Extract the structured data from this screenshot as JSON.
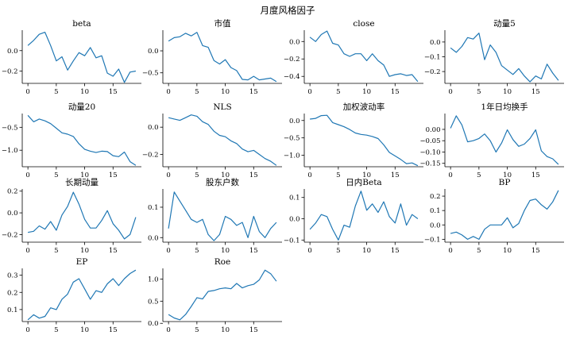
{
  "figure": {
    "title": "月度风格因子",
    "line_color": "#1f77b4"
  },
  "chart_data": [
    {
      "type": "line",
      "title": "beta",
      "x": [
        0,
        1,
        2,
        3,
        4,
        5,
        6,
        7,
        8,
        9,
        10,
        11,
        12,
        13,
        14,
        15,
        16,
        17,
        18,
        19
      ],
      "y": [
        0.05,
        0.1,
        0.16,
        0.18,
        0.05,
        -0.1,
        -0.06,
        -0.19,
        -0.1,
        -0.02,
        -0.05,
        0.03,
        -0.07,
        -0.05,
        -0.22,
        -0.25,
        -0.18,
        -0.31,
        -0.21,
        -0.2
      ],
      "xticks": [
        0,
        5,
        10,
        15
      ],
      "yticks": [
        0.0,
        -0.2
      ],
      "ytick_labels": [
        "0.0",
        "−0.2"
      ],
      "ylim": [
        -0.32,
        0.2
      ],
      "xlim": [
        -1,
        20
      ]
    },
    {
      "type": "line",
      "title": "市值",
      "x": [
        0,
        1,
        2,
        3,
        4,
        5,
        6,
        7,
        8,
        9,
        10,
        11,
        12,
        13,
        14,
        15,
        16,
        17,
        18,
        19
      ],
      "y": [
        0.22,
        0.3,
        0.32,
        0.4,
        0.34,
        0.42,
        0.12,
        0.08,
        -0.22,
        -0.3,
        -0.2,
        -0.38,
        -0.45,
        -0.65,
        -0.66,
        -0.58,
        -0.66,
        -0.64,
        -0.62,
        -0.7
      ],
      "xticks": [
        0,
        5,
        10,
        15
      ],
      "yticks": [
        0.0,
        -0.5
      ],
      "ytick_labels": [
        "0.0",
        "−0.5"
      ],
      "ylim": [
        -0.74,
        0.47
      ],
      "xlim": [
        -1,
        20
      ]
    },
    {
      "type": "line",
      "title": "close",
      "x": [
        0,
        1,
        2,
        3,
        4,
        5,
        6,
        7,
        8,
        9,
        10,
        11,
        12,
        13,
        14,
        15,
        16,
        17,
        18,
        19
      ],
      "y": [
        0.05,
        0.0,
        0.08,
        0.12,
        -0.02,
        -0.04,
        -0.14,
        -0.17,
        -0.14,
        -0.14,
        -0.22,
        -0.14,
        -0.22,
        -0.27,
        -0.4,
        -0.38,
        -0.37,
        -0.39,
        -0.38,
        -0.46
      ],
      "xticks": [
        0,
        5,
        10,
        15
      ],
      "yticks": [
        0.0,
        -0.2,
        -0.4
      ],
      "ytick_labels": [
        "0.0",
        "−0.2",
        "−0.4"
      ],
      "ylim": [
        -0.48,
        0.13
      ],
      "xlim": [
        -1,
        20
      ]
    },
    {
      "type": "line",
      "title": "动量5",
      "x": [
        0,
        1,
        2,
        3,
        4,
        5,
        6,
        7,
        8,
        9,
        10,
        11,
        12,
        13,
        14,
        15,
        16,
        17,
        18,
        19
      ],
      "y": [
        -0.04,
        -0.07,
        -0.03,
        0.03,
        0.02,
        0.06,
        -0.12,
        -0.02,
        -0.07,
        -0.16,
        -0.19,
        -0.22,
        -0.18,
        -0.23,
        -0.27,
        -0.23,
        -0.25,
        -0.15,
        -0.21,
        -0.26
      ],
      "xticks": [
        0,
        5,
        10,
        15
      ],
      "yticks": [
        0.0,
        -0.1,
        -0.2
      ],
      "ytick_labels": [
        "0.0",
        "−0.1",
        "−0.2"
      ],
      "ylim": [
        -0.28,
        0.08
      ],
      "xlim": [
        -1,
        20
      ]
    },
    {
      "type": "line",
      "title": "动量20",
      "x": [
        0,
        1,
        2,
        3,
        4,
        5,
        6,
        7,
        8,
        9,
        10,
        11,
        12,
        13,
        14,
        15,
        16,
        17,
        18,
        19
      ],
      "y": [
        -0.24,
        -0.38,
        -0.32,
        -0.36,
        -0.42,
        -0.52,
        -0.62,
        -0.65,
        -0.7,
        -0.86,
        -0.98,
        -1.02,
        -1.05,
        -1.02,
        -1.03,
        -1.12,
        -1.14,
        -1.04,
        -1.25,
        -1.33
      ],
      "xticks": [
        0,
        5,
        10,
        15
      ],
      "yticks": [
        -0.5,
        -1.0
      ],
      "ytick_labels": [
        "−0.5",
        "−1.0"
      ],
      "ylim": [
        -1.36,
        -0.2
      ],
      "xlim": [
        -1,
        20
      ]
    },
    {
      "type": "line",
      "title": "NLS",
      "x": [
        0,
        1,
        2,
        3,
        4,
        5,
        6,
        7,
        8,
        9,
        10,
        11,
        12,
        13,
        14,
        15,
        16,
        17,
        18,
        19
      ],
      "y": [
        0.07,
        0.06,
        0.05,
        0.07,
        0.09,
        0.08,
        0.04,
        0.02,
        -0.03,
        -0.06,
        -0.07,
        -0.1,
        -0.12,
        -0.16,
        -0.18,
        -0.17,
        -0.2,
        -0.23,
        -0.25,
        -0.28
      ],
      "xticks": [
        0,
        5,
        10,
        15
      ],
      "yticks": [
        0.0,
        -0.2
      ],
      "ytick_labels": [
        "0.0",
        "−0.2"
      ],
      "ylim": [
        -0.29,
        0.1
      ],
      "xlim": [
        -1,
        20
      ]
    },
    {
      "type": "line",
      "title": "加权波动率",
      "x": [
        0,
        1,
        2,
        3,
        4,
        5,
        6,
        7,
        8,
        9,
        10,
        11,
        12,
        13,
        14,
        15,
        16,
        17,
        18,
        19
      ],
      "y": [
        0.04,
        0.06,
        0.14,
        0.15,
        -0.06,
        -0.12,
        -0.18,
        -0.26,
        -0.36,
        -0.4,
        -0.42,
        -0.46,
        -0.52,
        -0.7,
        -0.92,
        -1.02,
        -1.12,
        -1.24,
        -1.22,
        -1.3
      ],
      "xticks": [
        0,
        5,
        10,
        15
      ],
      "yticks": [
        0.0,
        -0.5,
        -1.0
      ],
      "ytick_labels": [
        "0.0",
        "−0.5",
        "−1.0"
      ],
      "ylim": [
        -1.33,
        0.2
      ],
      "xlim": [
        -1,
        20
      ]
    },
    {
      "type": "line",
      "title": "1年日均换手",
      "x": [
        0,
        1,
        2,
        3,
        4,
        5,
        6,
        7,
        8,
        9,
        10,
        11,
        12,
        13,
        14,
        15,
        16,
        17,
        18,
        19
      ],
      "y": [
        0.005,
        0.06,
        0.02,
        -0.055,
        -0.05,
        -0.04,
        -0.02,
        -0.05,
        -0.1,
        -0.06,
        -0.002,
        -0.045,
        -0.075,
        -0.065,
        -0.04,
        -0.002,
        -0.095,
        -0.12,
        -0.13,
        -0.155
      ],
      "xticks": [
        0,
        5,
        10,
        15
      ],
      "yticks": [
        0.0,
        -0.05,
        -0.1,
        -0.15
      ],
      "ytick_labels": [
        "0.00",
        "−0.05",
        "−0.10",
        "−0.15"
      ],
      "ylim": [
        -0.165,
        0.07
      ],
      "xlim": [
        -1,
        20
      ]
    },
    {
      "type": "line",
      "title": "长期动量",
      "x": [
        0,
        1,
        2,
        3,
        4,
        5,
        6,
        7,
        8,
        9,
        10,
        11,
        12,
        13,
        14,
        15,
        16,
        17,
        18,
        19
      ],
      "y": [
        -0.18,
        -0.17,
        -0.12,
        -0.15,
        -0.08,
        -0.16,
        -0.02,
        0.06,
        0.19,
        0.08,
        -0.06,
        -0.14,
        -0.14,
        -0.07,
        0.02,
        -0.1,
        -0.16,
        -0.24,
        -0.2,
        -0.04
      ],
      "xticks": [
        0,
        5,
        10,
        15
      ],
      "yticks": [
        0.2,
        0.0,
        -0.2
      ],
      "ytick_labels": [
        "0.2",
        "0.0",
        "−0.2"
      ],
      "ylim": [
        -0.27,
        0.22
      ],
      "xlim": [
        -1,
        20
      ]
    },
    {
      "type": "line",
      "title": "股东户数",
      "x": [
        0,
        1,
        2,
        3,
        4,
        5,
        6,
        7,
        8,
        9,
        10,
        11,
        12,
        13,
        14,
        15,
        16,
        17,
        18,
        19
      ],
      "y": [
        0.03,
        0.15,
        0.12,
        0.09,
        0.06,
        0.05,
        0.06,
        0.01,
        -0.01,
        0.01,
        0.07,
        0.06,
        0.04,
        0.05,
        0.0,
        0.07,
        0.02,
        0.0,
        0.03,
        0.05
      ],
      "xticks": [
        0,
        5,
        10,
        15
      ],
      "yticks": [
        0.1,
        0.0
      ],
      "ytick_labels": [
        "0.1",
        "0.0"
      ],
      "ylim": [
        -0.015,
        0.16
      ],
      "xlim": [
        -1,
        20
      ]
    },
    {
      "type": "line",
      "title": "日内Beta",
      "x": [
        0,
        1,
        2,
        3,
        4,
        5,
        6,
        7,
        8,
        9,
        10,
        11,
        12,
        13,
        14,
        15,
        16,
        17,
        18,
        19
      ],
      "y": [
        -0.05,
        -0.02,
        0.02,
        0.01,
        -0.05,
        -0.1,
        -0.03,
        -0.04,
        0.06,
        0.13,
        0.04,
        0.07,
        0.03,
        0.08,
        0.01,
        -0.02,
        0.07,
        -0.03,
        0.02,
        0.0
      ],
      "xticks": [
        0,
        5,
        10,
        15
      ],
      "yticks": [
        0.1,
        0.0,
        -0.1
      ],
      "ytick_labels": [
        "0.1",
        "0.0",
        "−0.1"
      ],
      "ylim": [
        -0.11,
        0.14
      ],
      "xlim": [
        -1,
        20
      ]
    },
    {
      "type": "line",
      "title": "BP",
      "x": [
        0,
        1,
        2,
        3,
        4,
        5,
        6,
        7,
        8,
        9,
        10,
        11,
        12,
        13,
        14,
        15,
        16,
        17,
        18,
        19
      ],
      "y": [
        -0.06,
        -0.05,
        -0.07,
        -0.1,
        -0.08,
        -0.1,
        -0.03,
        0.0,
        0.0,
        0.0,
        0.05,
        -0.02,
        0.01,
        0.1,
        0.17,
        0.18,
        0.14,
        0.11,
        0.16,
        0.24
      ],
      "xticks": [
        0,
        5,
        10,
        15
      ],
      "yticks": [
        0.2,
        0.1,
        0.0,
        -0.1
      ],
      "ytick_labels": [
        "0.2",
        "0.1",
        "0.0",
        "−0.1"
      ],
      "ylim": [
        -0.12,
        0.25
      ],
      "xlim": [
        -1,
        20
      ]
    },
    {
      "type": "line",
      "title": "EP",
      "x": [
        0,
        1,
        2,
        3,
        4,
        5,
        6,
        7,
        8,
        9,
        10,
        11,
        12,
        13,
        14,
        15,
        16,
        17,
        18,
        19
      ],
      "y": [
        0.04,
        0.07,
        0.05,
        0.06,
        0.11,
        0.1,
        0.16,
        0.19,
        0.26,
        0.28,
        0.22,
        0.16,
        0.21,
        0.2,
        0.25,
        0.28,
        0.24,
        0.28,
        0.31,
        0.33
      ],
      "xticks": [
        0,
        5,
        10,
        15
      ],
      "yticks": [
        0.1,
        0.2,
        0.3
      ],
      "ytick_labels": [
        "0.1",
        "0.2",
        "0.3"
      ],
      "ylim": [
        0.03,
        0.34
      ],
      "xlim": [
        -1,
        20
      ]
    },
    {
      "type": "line",
      "title": "Roe",
      "x": [
        0,
        1,
        2,
        3,
        4,
        5,
        6,
        7,
        8,
        9,
        10,
        11,
        12,
        13,
        14,
        15,
        16,
        17,
        18,
        19
      ],
      "y": [
        0.2,
        0.12,
        0.08,
        0.2,
        0.38,
        0.58,
        0.55,
        0.72,
        0.74,
        0.78,
        0.8,
        0.78,
        0.9,
        0.8,
        0.85,
        0.88,
        0.98,
        1.2,
        1.12,
        0.95
      ],
      "xticks": [
        0,
        5,
        10,
        15
      ],
      "yticks": [
        0.0,
        0.5,
        1.0
      ],
      "ytick_labels": [
        "0.0",
        "0.5",
        "1.0"
      ],
      "ylim": [
        0.04,
        1.24
      ],
      "xlim": [
        -1,
        20
      ]
    }
  ]
}
